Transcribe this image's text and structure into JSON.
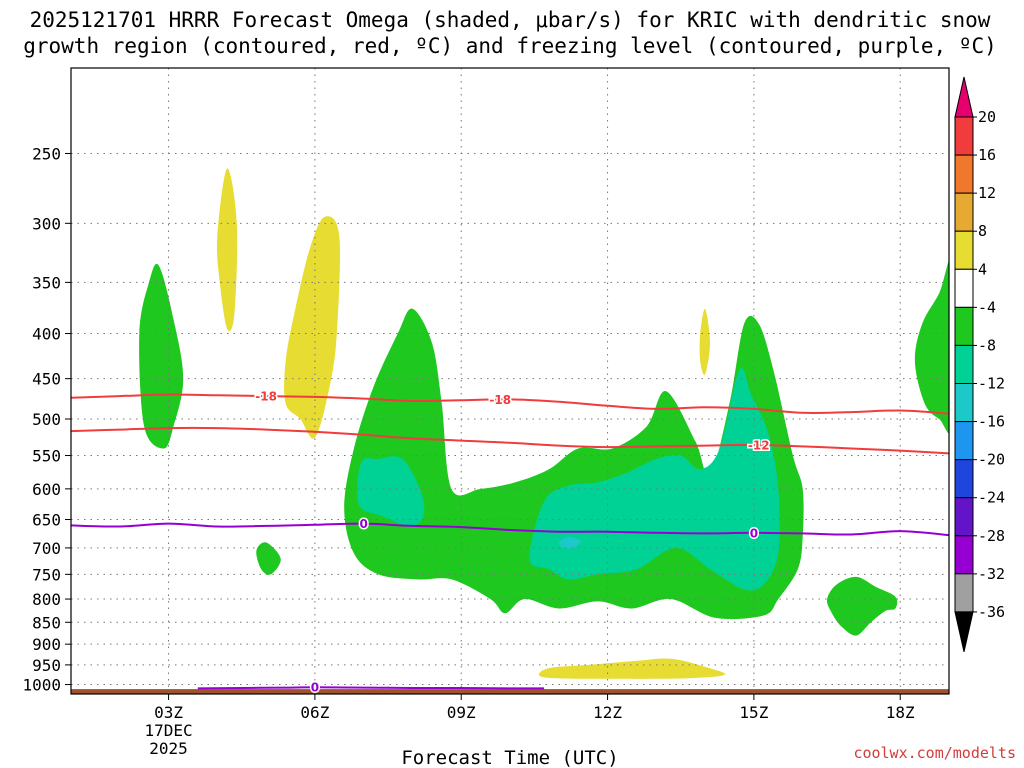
{
  "title": {
    "line1": "2025121701 HRRR Forecast Omega (shaded, μbar/s) for KRIC with dendritic snow",
    "line2": "growth region (contoured, red, ºC) and freezing level (contoured, purple, ºC)"
  },
  "credit": "coolwx.com/modelts",
  "colors": {
    "green": "#1ec81e",
    "teal": "#00d296",
    "cyan": "#1cc8c8",
    "yellow": "#e6dc32",
    "ground": "#a0522d",
    "dgz": "#f03c3c",
    "freezing": "#9600d2"
  },
  "chart_data": {
    "type": "heatmap",
    "xlabel": "Forecast Time (UTC)",
    "ylabel": "",
    "xlim": [
      1,
      19
    ],
    "ylim": [
      1025,
      200
    ],
    "x_ticks": [
      {
        "hour": 3,
        "label": "03Z",
        "date_line1": "17DEC",
        "date_line2": "2025"
      },
      {
        "hour": 6,
        "label": "06Z"
      },
      {
        "hour": 9,
        "label": "09Z"
      },
      {
        "hour": 12,
        "label": "12Z"
      },
      {
        "hour": 15,
        "label": "15Z"
      },
      {
        "hour": 18,
        "label": "18Z"
      }
    ],
    "y_ticks": [
      250,
      300,
      350,
      400,
      450,
      500,
      550,
      600,
      650,
      700,
      750,
      800,
      850,
      900,
      950,
      1000
    ],
    "colorbar": {
      "labels": [
        "20",
        "16",
        "12",
        "8",
        "4",
        "-4",
        "-8",
        "-12",
        "-16",
        "-20",
        "-24",
        "-28",
        "-32",
        "-36"
      ],
      "colors": [
        "#e6006e",
        "#f03c3c",
        "#f0782d",
        "#e6aa32",
        "#e6dc32",
        "#ffffff",
        "#1ec81e",
        "#00d296",
        "#1cc8c8",
        "#1e96f0",
        "#1e46dc",
        "#6414c8",
        "#9600d2",
        "#a0a0a0",
        "#000000"
      ]
    },
    "omega_regions": [
      {
        "level": "-4",
        "fill": "green",
        "points": [
          [
            2.4,
            400
          ],
          [
            2.6,
            350
          ],
          [
            2.8,
            335
          ],
          [
            3.1,
            385
          ],
          [
            3.3,
            450
          ],
          [
            3.1,
            510
          ],
          [
            2.9,
            540
          ],
          [
            2.5,
            510
          ]
        ]
      },
      {
        "level": "-4",
        "fill": "green",
        "points": [
          [
            6.6,
            630
          ],
          [
            6.8,
            540
          ],
          [
            7.2,
            460
          ],
          [
            7.7,
            400
          ],
          [
            8.0,
            375
          ],
          [
            8.4,
            410
          ],
          [
            8.6,
            480
          ],
          [
            8.8,
            600
          ],
          [
            9.4,
            600
          ],
          [
            10.1,
            590
          ],
          [
            10.8,
            570
          ],
          [
            11.4,
            540
          ],
          [
            12.1,
            540
          ],
          [
            12.8,
            510
          ],
          [
            13.2,
            465
          ],
          [
            13.8,
            530
          ],
          [
            14.1,
            580
          ],
          [
            14.5,
            480
          ],
          [
            14.8,
            390
          ],
          [
            15.1,
            390
          ],
          [
            15.4,
            440
          ],
          [
            15.8,
            550
          ],
          [
            16.0,
            600
          ],
          [
            16.0,
            680
          ],
          [
            15.9,
            740
          ],
          [
            15.5,
            800
          ],
          [
            15.2,
            835
          ],
          [
            14.2,
            840
          ],
          [
            13.3,
            800
          ],
          [
            12.5,
            820
          ],
          [
            11.8,
            805
          ],
          [
            11.0,
            820
          ],
          [
            10.3,
            800
          ],
          [
            9.9,
            830
          ],
          [
            9.6,
            800
          ],
          [
            8.8,
            760
          ],
          [
            8.1,
            760
          ],
          [
            7.3,
            750
          ],
          [
            6.8,
            710
          ]
        ]
      },
      {
        "level": "-4",
        "fill": "green",
        "points": [
          [
            4.8,
            705
          ],
          [
            5.0,
            690
          ],
          [
            5.3,
            720
          ],
          [
            5.1,
            750
          ],
          [
            4.9,
            740
          ]
        ]
      },
      {
        "level": "-4",
        "fill": "green",
        "points": [
          [
            16.5,
            800
          ],
          [
            16.7,
            770
          ],
          [
            17.1,
            755
          ],
          [
            17.5,
            775
          ],
          [
            17.9,
            795
          ],
          [
            17.9,
            820
          ],
          [
            17.7,
            825
          ],
          [
            17.4,
            850
          ],
          [
            17.1,
            880
          ],
          [
            16.8,
            860
          ],
          [
            16.6,
            830
          ]
        ]
      },
      {
        "level": "-4",
        "fill": "green",
        "points": [
          [
            19.1,
            330
          ],
          [
            18.8,
            360
          ],
          [
            18.45,
            390
          ],
          [
            18.3,
            430
          ],
          [
            18.5,
            480
          ],
          [
            18.8,
            500
          ],
          [
            19.1,
            505
          ]
        ]
      },
      {
        "level": "-8",
        "fill": "teal",
        "points": [
          [
            6.95,
            560
          ],
          [
            7.3,
            555
          ],
          [
            7.8,
            555
          ],
          [
            8.2,
            610
          ],
          [
            8.2,
            650
          ],
          [
            7.9,
            660
          ],
          [
            7.4,
            645
          ],
          [
            6.9,
            625
          ]
        ]
      },
      {
        "level": "-8",
        "fill": "teal",
        "points": [
          [
            10.4,
            720
          ],
          [
            10.7,
            620
          ],
          [
            11.2,
            595
          ],
          [
            11.8,
            590
          ],
          [
            12.4,
            575
          ],
          [
            13.0,
            555
          ],
          [
            13.5,
            550
          ],
          [
            13.9,
            570
          ],
          [
            14.3,
            540
          ],
          [
            14.7,
            440
          ],
          [
            14.95,
            470
          ],
          [
            15.3,
            520
          ],
          [
            15.5,
            600
          ],
          [
            15.5,
            710
          ],
          [
            15.2,
            770
          ],
          [
            14.8,
            780
          ],
          [
            14.1,
            740
          ],
          [
            13.4,
            700
          ],
          [
            12.6,
            740
          ],
          [
            11.8,
            750
          ],
          [
            11.2,
            760
          ],
          [
            10.8,
            740
          ]
        ]
      },
      {
        "level": "-12",
        "fill": "cyan",
        "points": [
          [
            11.0,
            690
          ],
          [
            11.2,
            680
          ],
          [
            11.45,
            688
          ],
          [
            11.3,
            700
          ],
          [
            11.1,
            700
          ]
        ]
      },
      {
        "level": "4",
        "fill": "yellow",
        "points": [
          [
            4.0,
            310
          ],
          [
            4.2,
            260
          ],
          [
            4.4,
            300
          ],
          [
            4.35,
            380
          ],
          [
            4.2,
            395
          ],
          [
            4.05,
            350
          ]
        ]
      },
      {
        "level": "4",
        "fill": "yellow",
        "points": [
          [
            5.4,
            430
          ],
          [
            5.6,
            375
          ],
          [
            5.9,
            320
          ],
          [
            6.2,
            295
          ],
          [
            6.5,
            310
          ],
          [
            6.45,
            400
          ],
          [
            6.3,
            460
          ],
          [
            6.0,
            525
          ],
          [
            5.7,
            500
          ],
          [
            5.4,
            480
          ]
        ]
      },
      {
        "level": "4",
        "fill": "yellow",
        "points": [
          [
            13.9,
            400
          ],
          [
            14.0,
            375
          ],
          [
            14.1,
            410
          ],
          [
            14.0,
            445
          ],
          [
            13.9,
            430
          ]
        ]
      },
      {
        "level": "4",
        "fill": "yellow",
        "points": [
          [
            10.6,
            977
          ],
          [
            10.8,
            958
          ],
          [
            11.6,
            950
          ],
          [
            12.6,
            940
          ],
          [
            13.3,
            935
          ],
          [
            14.0,
            955
          ],
          [
            14.4,
            975
          ],
          [
            13.6,
            984
          ],
          [
            12.2,
            985
          ],
          [
            11.0,
            984
          ]
        ]
      }
    ],
    "contours": [
      {
        "name": "dgz-minus18",
        "color": "dgz",
        "label": "-18",
        "label_positions": [
          5.0,
          9.8
        ],
        "points": [
          [
            1,
            473
          ],
          [
            2,
            471
          ],
          [
            3,
            469
          ],
          [
            4,
            470
          ],
          [
            5,
            471
          ],
          [
            6,
            472
          ],
          [
            7,
            474
          ],
          [
            8,
            477
          ],
          [
            9,
            476
          ],
          [
            10,
            475
          ],
          [
            11,
            478
          ],
          [
            12,
            483
          ],
          [
            13,
            487
          ],
          [
            14,
            485
          ],
          [
            15,
            487
          ],
          [
            16,
            492
          ],
          [
            17,
            491
          ],
          [
            18,
            489
          ],
          [
            19,
            493
          ]
        ]
      },
      {
        "name": "dgz-minus12",
        "color": "dgz",
        "label": "-12",
        "label_positions": [
          15.1
        ],
        "points": [
          [
            1,
            516
          ],
          [
            2,
            514
          ],
          [
            3,
            512
          ],
          [
            4,
            512
          ],
          [
            5,
            514
          ],
          [
            6,
            517
          ],
          [
            7,
            521
          ],
          [
            8,
            526
          ],
          [
            9,
            529
          ],
          [
            10,
            532
          ],
          [
            11,
            536
          ],
          [
            12,
            538
          ],
          [
            13,
            537
          ],
          [
            14,
            536
          ],
          [
            15,
            535
          ],
          [
            16,
            537
          ],
          [
            17,
            540
          ],
          [
            18,
            543
          ],
          [
            19,
            547
          ]
        ]
      },
      {
        "name": "freezing-level",
        "color": "freezing",
        "label": "0",
        "label_positions": [
          7.0,
          15.0
        ],
        "points": [
          [
            1,
            660
          ],
          [
            2,
            662
          ],
          [
            3,
            657
          ],
          [
            4,
            662
          ],
          [
            5,
            661
          ],
          [
            6,
            659
          ],
          [
            7,
            657
          ],
          [
            8,
            661
          ],
          [
            9,
            663
          ],
          [
            10,
            668
          ],
          [
            11,
            671
          ],
          [
            12,
            671
          ],
          [
            13,
            673
          ],
          [
            14,
            674
          ],
          [
            15,
            673
          ],
          [
            16,
            674
          ],
          [
            17,
            676
          ],
          [
            18,
            670
          ],
          [
            19,
            677
          ]
        ]
      },
      {
        "name": "freezing-level-surface",
        "color": "freezing",
        "label": "0",
        "label_positions": [
          6.0
        ],
        "points": [
          [
            3.6,
            1010
          ],
          [
            4.5,
            1009
          ],
          [
            5.5,
            1008
          ],
          [
            6.0,
            1007
          ],
          [
            7.0,
            1008
          ],
          [
            8.0,
            1009
          ],
          [
            9.0,
            1009
          ],
          [
            10.0,
            1010
          ],
          [
            10.7,
            1010
          ]
        ]
      }
    ],
    "ground": {
      "pressure_top": 1012
    }
  }
}
